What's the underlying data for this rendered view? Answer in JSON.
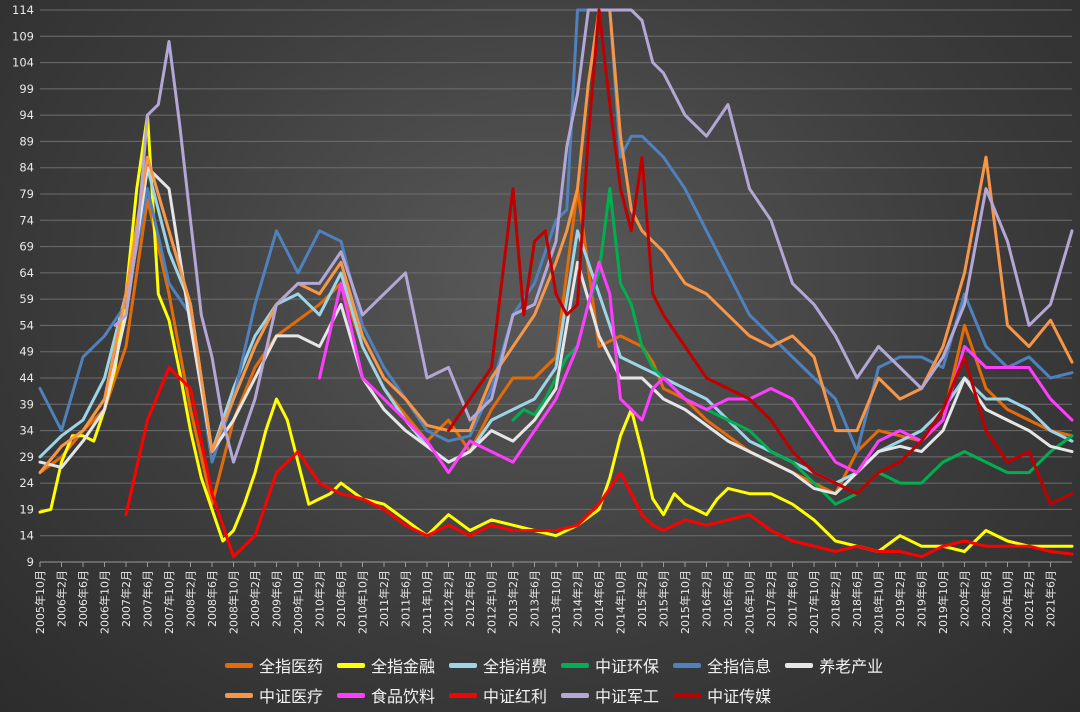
{
  "chart_data": {
    "type": "line",
    "title": "",
    "xlabel": "",
    "ylabel": "",
    "ylim": [
      9,
      114
    ],
    "yticks": [
      9,
      14,
      19,
      24,
      29,
      34,
      39,
      44,
      49,
      54,
      59,
      64,
      69,
      74,
      79,
      84,
      89,
      94,
      99,
      104,
      109,
      114
    ],
    "grid": true,
    "legend_position": "bottom",
    "x_start": "2005年10月",
    "x_end": "2021年10月",
    "xticks": [
      "2005年10月",
      "2006年2月",
      "2006年6月",
      "2006年10月",
      "2007年2月",
      "2007年6月",
      "2007年10月",
      "2008年2月",
      "2008年6月",
      "2008年10月",
      "2009年2月",
      "2009年6月",
      "2009年10月",
      "2010年2月",
      "2010年6月",
      "2010年10月",
      "2011年2月",
      "2011年6月",
      "2011年10月",
      "2012年2月",
      "2012年6月",
      "2012年10月",
      "2013年2月",
      "2013年6月",
      "2013年10月",
      "2014年2月",
      "2014年6月",
      "2014年10月",
      "2015年2月",
      "2015年6月",
      "2015年10月",
      "2016年2月",
      "2016年6月",
      "2016年10月",
      "2017年2月",
      "2017年6月",
      "2017年10月",
      "2018年2月",
      "2018年6月",
      "2018年10月",
      "2019年2月",
      "2019年6月",
      "2019年10月",
      "2020年2月",
      "2020年6月",
      "2020年10月",
      "2021年2月",
      "2021年6月"
    ],
    "series": [
      {
        "name": "全指医药",
        "color": "#e36c09",
        "t": [
          0,
          4,
          8,
          12,
          16,
          20,
          24,
          28,
          32,
          36,
          40,
          44,
          48,
          52,
          56,
          60,
          64,
          68,
          72,
          76,
          80,
          84,
          88,
          92,
          96,
          100,
          104,
          108,
          112,
          114,
          116,
          120,
          124,
          128,
          132,
          136,
          140,
          144,
          148,
          152,
          156,
          160,
          164,
          168,
          172,
          176,
          180,
          184,
          188,
          192
        ],
        "v": [
          26,
          29,
          34,
          38,
          50,
          78,
          60,
          38,
          20,
          36,
          46,
          52,
          55,
          58,
          62,
          50,
          42,
          37,
          32,
          36,
          30,
          38,
          44,
          44,
          48,
          80,
          50,
          52,
          50,
          47,
          42,
          40,
          36,
          33,
          30,
          28,
          26,
          24,
          22,
          30,
          34,
          33,
          32,
          36,
          54,
          42,
          38,
          36,
          34,
          33
        ]
      },
      {
        "name": "全指金融",
        "color": "#ffff00",
        "t": [
          0,
          2,
          4,
          6,
          8,
          10,
          12,
          14,
          16,
          18,
          20,
          22,
          24,
          26,
          28,
          30,
          32,
          34,
          36,
          38,
          40,
          42,
          44,
          46,
          48,
          50,
          52,
          54,
          56,
          60,
          64,
          68,
          72,
          76,
          80,
          84,
          88,
          92,
          96,
          100,
          104,
          106,
          108,
          110,
          112,
          114,
          116,
          118,
          120,
          122,
          124,
          126,
          128,
          132,
          136,
          140,
          144,
          148,
          152,
          156,
          160,
          164,
          168,
          172,
          176,
          180,
          184,
          188,
          192
        ],
        "v": [
          18.5,
          19,
          28,
          33,
          33,
          32,
          38,
          46,
          60,
          80,
          94,
          60,
          55,
          45,
          34,
          25,
          19,
          13,
          15,
          20,
          26,
          34,
          40,
          36,
          28,
          20,
          21,
          22,
          24,
          21,
          20,
          17,
          14,
          18,
          15,
          17,
          16,
          15,
          14,
          16,
          19,
          25,
          33,
          38,
          30,
          21,
          18,
          22,
          20,
          19,
          18,
          21,
          23,
          22,
          22,
          20,
          17,
          13,
          12,
          11,
          14,
          12,
          12,
          11,
          15,
          13,
          12,
          12,
          12
        ]
      },
      {
        "name": "全指消费",
        "color": "#9dd5e8",
        "t": [
          0,
          4,
          8,
          12,
          16,
          20,
          24,
          28,
          32,
          36,
          40,
          44,
          48,
          52,
          56,
          60,
          64,
          68,
          72,
          76,
          80,
          84,
          88,
          92,
          96,
          100,
          104,
          108,
          112,
          114,
          116,
          120,
          124,
          128,
          132,
          136,
          140,
          144,
          148,
          152,
          156,
          160,
          164,
          168,
          172,
          176,
          180,
          184,
          188,
          192
        ],
        "v": [
          29,
          33,
          36,
          44,
          60,
          84,
          68,
          58,
          30,
          42,
          52,
          58,
          60,
          56,
          64,
          50,
          42,
          36,
          31,
          28,
          30,
          36,
          38,
          40,
          46,
          72,
          60,
          48,
          46,
          45,
          44,
          42,
          40,
          36,
          32,
          30,
          28,
          26,
          24,
          26,
          30,
          32,
          34,
          38,
          44,
          40,
          40,
          38,
          34,
          32
        ]
      },
      {
        "name": "中证环保",
        "color": "#00b050",
        "t": [
          88,
          90,
          92,
          94,
          96,
          98,
          100,
          102,
          104,
          106,
          108,
          110,
          112,
          114,
          116,
          118,
          120,
          124,
          128,
          132,
          136,
          140,
          144,
          148,
          152,
          156,
          160,
          164,
          168,
          172,
          176,
          180,
          184,
          188,
          192
        ],
        "v": [
          36,
          38,
          37,
          40,
          44,
          48,
          50,
          58,
          64,
          80,
          62,
          58,
          50,
          46,
          44,
          42,
          40,
          38,
          36,
          34,
          30,
          28,
          24,
          20,
          22,
          26,
          24,
          24,
          28,
          30,
          28,
          26,
          26,
          30,
          33
        ]
      },
      {
        "name": "全指信息",
        "color": "#4f81bd",
        "t": [
          0,
          4,
          8,
          12,
          16,
          20,
          24,
          28,
          32,
          36,
          40,
          44,
          48,
          52,
          56,
          60,
          64,
          68,
          72,
          76,
          80,
          84,
          88,
          92,
          96,
          98,
          100,
          102,
          104,
          106,
          108,
          110,
          112,
          114,
          116,
          120,
          124,
          128,
          132,
          136,
          140,
          144,
          148,
          152,
          156,
          160,
          164,
          168,
          172,
          176,
          180,
          184,
          188,
          192
        ],
        "v": [
          42,
          34,
          48,
          52,
          58,
          80,
          62,
          56,
          28,
          40,
          58,
          72,
          64,
          72,
          70,
          54,
          46,
          40,
          34,
          32,
          33,
          42,
          56,
          62,
          74,
          76,
          114,
          114,
          114,
          114,
          86,
          90,
          90,
          88,
          86,
          80,
          72,
          64,
          56,
          52,
          48,
          44,
          40,
          30,
          46,
          48,
          48,
          46,
          60,
          50,
          46,
          48,
          44,
          45
        ]
      },
      {
        "name": "养老产业",
        "color": "#e6e6e6",
        "t": [
          0,
          4,
          8,
          12,
          16,
          20,
          24,
          28,
          32,
          36,
          40,
          44,
          48,
          52,
          56,
          60,
          64,
          68,
          72,
          76,
          80,
          84,
          88,
          92,
          96,
          100,
          104,
          108,
          112,
          114,
          116,
          120,
          124,
          128,
          132,
          136,
          140,
          144,
          148,
          152,
          156,
          160,
          164,
          168,
          172,
          176,
          180,
          184,
          188,
          192
        ],
        "v": [
          28,
          27,
          32,
          38,
          56,
          84,
          80,
          54,
          30,
          36,
          44,
          52,
          52,
          50,
          58,
          44,
          38,
          34,
          31,
          28,
          30,
          34,
          32,
          36,
          42,
          66,
          52,
          44,
          44,
          42,
          40,
          38,
          35,
          32,
          30,
          28,
          26,
          23,
          22,
          26,
          30,
          31,
          30,
          34,
          44,
          38,
          36,
          34,
          31,
          30
        ]
      },
      {
        "name": "中证医疗",
        "color": "#f79646",
        "t": [
          0,
          4,
          8,
          12,
          16,
          20,
          24,
          28,
          32,
          36,
          40,
          44,
          48,
          52,
          56,
          60,
          64,
          68,
          72,
          76,
          80,
          84,
          88,
          92,
          96,
          98,
          100,
          102,
          104,
          106,
          108,
          110,
          112,
          114,
          116,
          120,
          124,
          128,
          132,
          136,
          140,
          144,
          148,
          152,
          156,
          160,
          164,
          168,
          172,
          176,
          180,
          184,
          188,
          192
        ],
        "v": [
          26,
          31,
          34,
          40,
          60,
          86,
          72,
          58,
          30,
          40,
          50,
          58,
          62,
          60,
          66,
          52,
          44,
          40,
          35,
          34,
          34,
          44,
          50,
          56,
          66,
          72,
          80,
          100,
          114,
          114,
          90,
          76,
          72,
          70,
          68,
          62,
          60,
          56,
          52,
          50,
          52,
          48,
          34,
          34,
          44,
          40,
          42,
          50,
          64,
          86,
          54,
          50,
          55,
          47
        ]
      },
      {
        "name": "食品饮料",
        "color": "#ff3dff",
        "t": [
          52,
          56,
          60,
          64,
          68,
          72,
          76,
          80,
          84,
          88,
          92,
          96,
          100,
          104,
          106,
          108,
          110,
          112,
          114,
          116,
          120,
          124,
          128,
          132,
          136,
          140,
          144,
          148,
          152,
          156,
          160,
          164,
          168,
          172,
          176,
          180,
          184,
          188,
          192
        ],
        "v": [
          44,
          62,
          44,
          40,
          36,
          32,
          26,
          32,
          30,
          28,
          34,
          40,
          50,
          66,
          60,
          40,
          38,
          36,
          42,
          44,
          40,
          38,
          40,
          40,
          42,
          40,
          34,
          28,
          26,
          32,
          34,
          32,
          36,
          50,
          46,
          46,
          46,
          40,
          36
        ]
      },
      {
        "name": "中证红利",
        "color": "#ff0000",
        "t": [
          16,
          20,
          24,
          28,
          32,
          36,
          40,
          44,
          48,
          52,
          56,
          60,
          64,
          68,
          72,
          76,
          80,
          84,
          88,
          92,
          96,
          100,
          104,
          108,
          112,
          114,
          116,
          120,
          124,
          128,
          132,
          136,
          140,
          144,
          148,
          152,
          156,
          160,
          164,
          168,
          172,
          176,
          180,
          184,
          188,
          192
        ],
        "v": [
          18,
          36,
          46,
          42,
          22,
          10,
          14,
          26,
          30,
          24,
          22,
          21,
          19,
          16,
          14,
          16,
          14,
          16,
          15,
          15,
          15,
          16,
          20,
          26,
          18,
          16,
          15,
          17,
          16,
          17,
          18,
          15,
          13,
          12,
          11,
          12,
          11,
          11,
          10,
          12,
          13,
          12,
          12,
          12,
          11,
          10.5
        ]
      },
      {
        "name": "中证军工",
        "color": "#b4a7d6",
        "t": [
          14,
          16,
          18,
          20,
          22,
          24,
          26,
          28,
          30,
          32,
          34,
          36,
          40,
          44,
          48,
          52,
          56,
          60,
          64,
          68,
          72,
          76,
          80,
          84,
          88,
          92,
          96,
          98,
          100,
          102,
          104,
          106,
          108,
          110,
          112,
          114,
          116,
          120,
          124,
          128,
          132,
          136,
          140,
          144,
          148,
          152,
          156,
          160,
          164,
          168,
          172,
          176,
          180,
          184,
          188,
          192
        ],
        "v": [
          54,
          56,
          70,
          94,
          96,
          108,
          92,
          74,
          56,
          48,
          36,
          28,
          40,
          58,
          62,
          62,
          68,
          56,
          60,
          64,
          44,
          46,
          36,
          40,
          56,
          58,
          70,
          88,
          98,
          114,
          114,
          114,
          114,
          114,
          112,
          104,
          102,
          94,
          90,
          96,
          80,
          74,
          62,
          58,
          52,
          44,
          50,
          46,
          42,
          48,
          58,
          80,
          70,
          54,
          58,
          72
        ]
      },
      {
        "name": "中证传媒",
        "color": "#c00000",
        "t": [
          76,
          80,
          84,
          88,
          90,
          92,
          94,
          96,
          98,
          100,
          102,
          104,
          106,
          108,
          110,
          112,
          114,
          116,
          120,
          124,
          128,
          132,
          136,
          140,
          144,
          148,
          152,
          156,
          160,
          164,
          168,
          172,
          176,
          180,
          184,
          188,
          192
        ],
        "v": [
          34,
          40,
          46,
          80,
          56,
          70,
          72,
          60,
          56,
          58,
          90,
          114,
          96,
          80,
          72,
          86,
          60,
          56,
          50,
          44,
          42,
          40,
          36,
          30,
          26,
          24,
          22,
          26,
          28,
          32,
          38,
          48,
          34,
          28,
          30,
          20,
          22
        ]
      }
    ]
  }
}
